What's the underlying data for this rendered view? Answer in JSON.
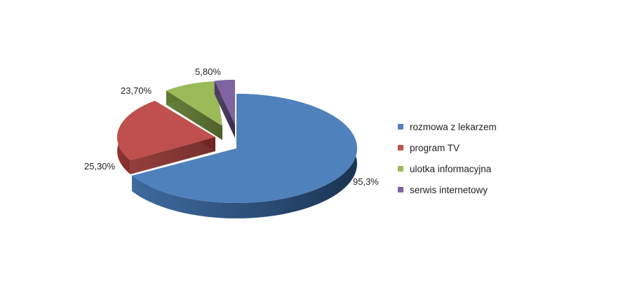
{
  "chart_data": {
    "type": "pie",
    "style": "3d-exploded",
    "title": "",
    "legend_position": "right",
    "slices": [
      {
        "name": "rozmowa z lekarzem",
        "value": 95.3,
        "label": "95,3%",
        "color": "#4F81BD"
      },
      {
        "name": "program TV",
        "value": 25.3,
        "label": "25,30%",
        "color": "#C0504D"
      },
      {
        "name": "ulotka informacyjna",
        "value": 23.7,
        "label": "23,70%",
        "color": "#9BBB59"
      },
      {
        "name": "serwis internetowy",
        "value": 5.8,
        "label": "5,80%",
        "color": "#8064A2"
      }
    ]
  }
}
